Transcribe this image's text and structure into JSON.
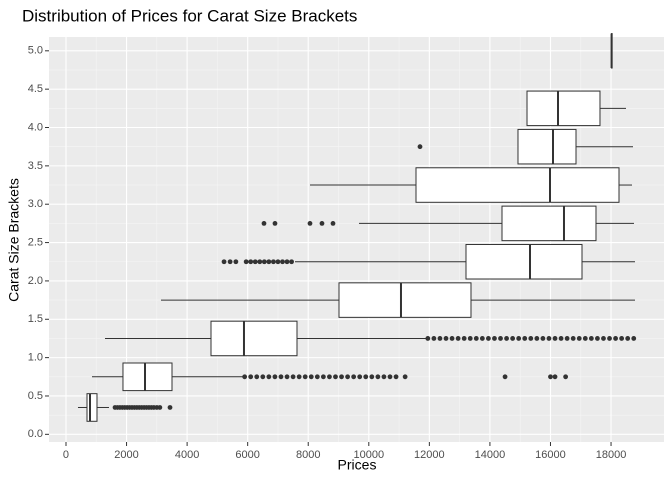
{
  "chart_data": {
    "type": "boxplot",
    "orientation": "horizontal",
    "title": "Distribution of Prices for Carat Size Brackets",
    "x_label": "Prices",
    "y_label": "Carat Size Brackets",
    "xlim": [
      -561,
      19749
    ],
    "ylim": [
      -0.1,
      5.18
    ],
    "xticks": [
      0,
      2000,
      4000,
      6000,
      8000,
      10000,
      12000,
      14000,
      16000,
      18000
    ],
    "yticks": [
      {
        "value": 0,
        "label": "0.0"
      },
      {
        "value": 0.5,
        "label": "0.5"
      },
      {
        "value": 1,
        "label": "1.0"
      },
      {
        "value": 1.5,
        "label": "1.5"
      },
      {
        "value": 2,
        "label": "2.0"
      },
      {
        "value": 2.5,
        "label": "2.5"
      },
      {
        "value": 3,
        "label": "3.0"
      },
      {
        "value": 3.5,
        "label": "3.5"
      },
      {
        "value": 4,
        "label": "4.0"
      },
      {
        "value": 4.5,
        "label": "4.5"
      },
      {
        "value": 5,
        "label": "5.0"
      }
    ],
    "grid": true,
    "color": "#333333",
    "boxes": [
      {
        "y": 0.35,
        "min": 396,
        "q1": 694,
        "median": 793,
        "q3": 1024,
        "max": 1420,
        "outliers": [
          1620,
          1700,
          1780,
          1860,
          1940,
          2020,
          2100,
          2180,
          2260,
          2340,
          2420,
          2500,
          2580,
          2660,
          2740,
          2820,
          2900,
          3000,
          3100,
          3435
        ]
      },
      {
        "y": 0.75,
        "min": 859,
        "q1": 1882,
        "median": 2609,
        "q3": 3501,
        "max": 5878,
        "outliers": [
          5900,
          6100,
          6300,
          6500,
          6700,
          6900,
          7100,
          7300,
          7500,
          7700,
          7900,
          8100,
          8300,
          8500,
          8700,
          8900,
          9100,
          9300,
          9500,
          9700,
          9900,
          10100,
          10300,
          10500,
          10700,
          10900,
          11200,
          14500,
          16000,
          16150,
          16500
        ]
      },
      {
        "y": 1.25,
        "min": 1288,
        "q1": 4789,
        "median": 5878,
        "q3": 7629,
        "max": 11922,
        "outliers": [
          11950,
          12150,
          12350,
          12550,
          12750,
          12950,
          13150,
          13350,
          13550,
          13750,
          13950,
          14150,
          14350,
          14550,
          14750,
          14950,
          15150,
          15350,
          15550,
          15750,
          15950,
          16150,
          16350,
          16550,
          16750,
          16950,
          17150,
          17350,
          17550,
          17750,
          17950,
          18150,
          18350,
          18550,
          18750
        ]
      },
      {
        "y": 1.75,
        "min": 3137,
        "q1": 9016,
        "median": 11063,
        "q3": 13375,
        "max": 18791,
        "outliers": []
      },
      {
        "y": 2.25,
        "min": 7563,
        "q1": 13210,
        "median": 15324,
        "q3": 17041,
        "max": 18791,
        "outliers": [
          5220,
          5420,
          5610,
          5950,
          6100,
          6250,
          6400,
          6550,
          6700,
          6850,
          7000,
          7150,
          7300,
          7450
        ]
      },
      {
        "y": 2.75,
        "min": 9676,
        "q1": 14399,
        "median": 16446,
        "q3": 17503,
        "max": 18758,
        "outliers": [
          6539,
          6902,
          8058,
          8454,
          8818
        ]
      },
      {
        "y": 3.25,
        "min": 8058,
        "q1": 11559,
        "median": 15984,
        "q3": 18263,
        "max": 18692,
        "outliers": []
      },
      {
        "y": 3.75,
        "min": 14927,
        "q1": 14927,
        "median": 16083,
        "q3": 16843,
        "max": 18725,
        "outliers": [
          11691
        ]
      },
      {
        "y": 4.25,
        "min": 15225,
        "q1": 15225,
        "median": 16248,
        "q3": 17635,
        "max": 18494,
        "outliers": []
      },
      {
        "y": 5.0,
        "min": 18018,
        "q1": 18018,
        "median": 18018,
        "q3": 18018,
        "max": 18018,
        "outliers": []
      }
    ]
  }
}
